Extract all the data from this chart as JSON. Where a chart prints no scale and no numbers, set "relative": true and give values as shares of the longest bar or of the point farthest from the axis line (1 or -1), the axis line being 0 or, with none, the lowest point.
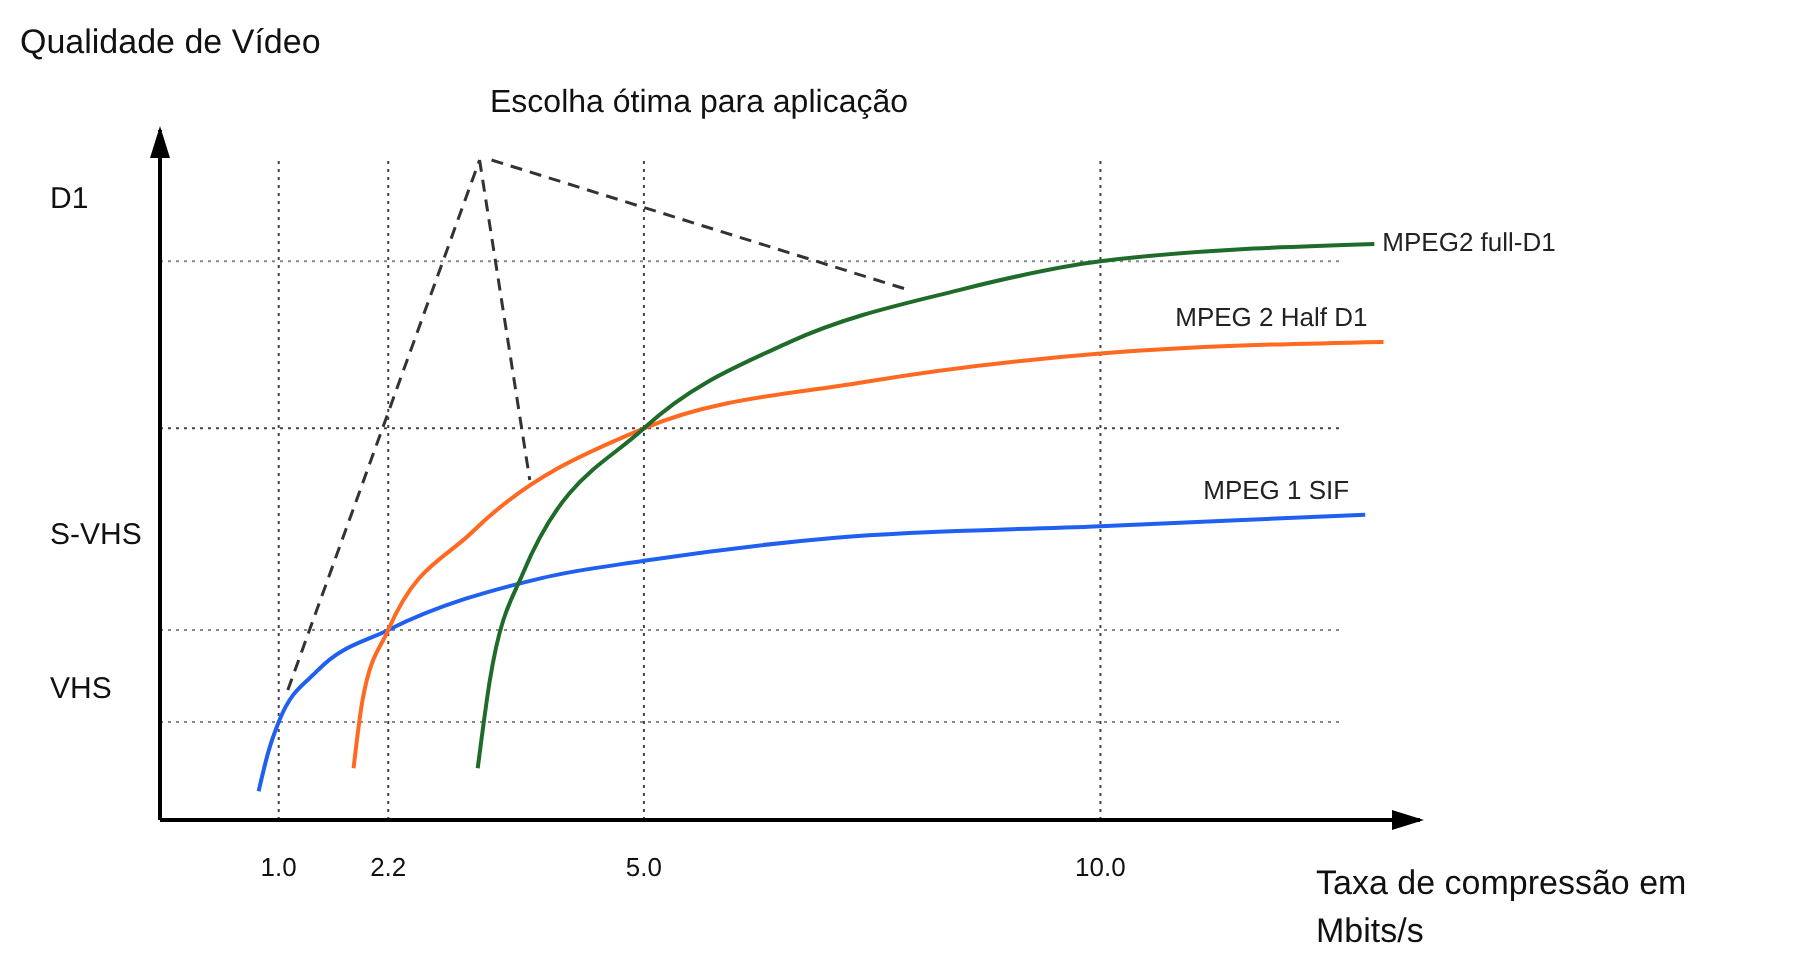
{
  "chart_data": {
    "type": "line",
    "xlabel": "Taxa de compressão em Mbits/s",
    "relative": true,
    "annotations": [
      "Qualidade de Vídeo",
      "Escolha ótima para aplicação",
      "D1",
      "S-VHS",
      "VHS"
    ],
    "xlim": [
      -0.3,
      13.5
    ],
    "xticks": [
      {
        "value": 1.0,
        "label": "1.0"
      },
      {
        "value": 2.2,
        "label": "2.2"
      },
      {
        "value": 5.0,
        "label": "5.0"
      },
      {
        "value": 10.0,
        "label": "10.0"
      }
    ],
    "marker": "none",
    "line_style": "solid",
    "series": [
      {
        "name": "MPEG 1 SIF",
        "color": "#2060f0",
        "x": [
          0.78,
          0.89,
          1.0,
          1.43,
          2.2,
          3.88,
          5.0,
          7.1,
          10.0,
          12.9
        ],
        "values": [
          0.05,
          0.12,
          0.17,
          0.26,
          0.33,
          0.42,
          0.45,
          0.49,
          0.51,
          0.53
        ]
      },
      {
        "name": "MPEG 2 Half D1",
        "color": "#ff6a20",
        "x": [
          1.82,
          1.92,
          2.2,
          3.12,
          5.0,
          7.4,
          10.0,
          13.1
        ],
        "values": [
          0.09,
          0.21,
          0.33,
          0.5,
          0.68,
          0.76,
          0.81,
          0.83
        ]
      },
      {
        "name": "MPEG2 full-D1",
        "color": "#1e6b2a",
        "x": [
          3.18,
          3.31,
          3.68,
          5.0,
          6.6,
          8.45,
          10.0,
          13.0
        ],
        "values": [
          0.09,
          0.24,
          0.43,
          0.68,
          0.83,
          0.92,
          0.97,
          1.0
        ]
      }
    ],
    "ref_lines": [
      {
        "axis": "x",
        "value": 1.0,
        "line_style": "dotted",
        "color": "#444444"
      },
      {
        "axis": "x",
        "value": 2.2,
        "line_style": "dotted",
        "color": "#444444"
      },
      {
        "axis": "x",
        "value": 5.0,
        "line_style": "dotted",
        "color": "#444444"
      },
      {
        "axis": "x",
        "value": 10.0,
        "line_style": "dotted",
        "color": "#444444"
      },
      {
        "axis": "y",
        "value": 0.17,
        "line_style": "dotted",
        "color": "#888888"
      },
      {
        "axis": "y",
        "value": 0.33,
        "line_style": "dotted",
        "color": "#888888"
      },
      {
        "axis": "y",
        "value": 0.68,
        "line_style": "dotted",
        "color": "#444444"
      },
      {
        "axis": "y",
        "value": 0.97,
        "line_style": "dotted",
        "color": "#888888"
      }
    ]
  }
}
